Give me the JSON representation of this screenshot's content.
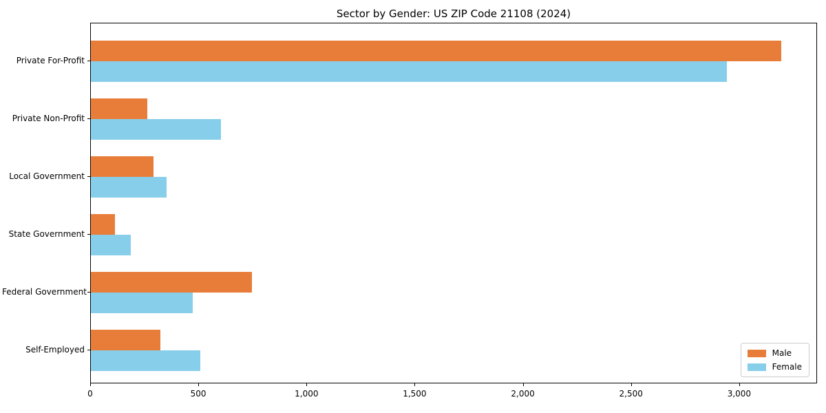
{
  "title": "Sector by Gender: US ZIP Code 21108 (2024)",
  "chart_data": {
    "type": "bar",
    "orientation": "horizontal",
    "title": "Sector by Gender: US ZIP Code 21108 (2024)",
    "xlabel": "",
    "ylabel": "",
    "categories": [
      "Private For-Profit",
      "Private Non-Profit",
      "Local Government",
      "State Government",
      "Federal Government",
      "Self-Employed"
    ],
    "series": [
      {
        "name": "Male",
        "color": "#E87D3A",
        "values": [
          3190,
          260,
          290,
          110,
          745,
          320
        ]
      },
      {
        "name": "Female",
        "color": "#87CEEB",
        "values": [
          2940,
          600,
          350,
          185,
          470,
          505
        ]
      }
    ],
    "xlim": [
      0,
      3360
    ],
    "xticks": [
      0,
      500,
      1000,
      1500,
      2000,
      2500,
      3000
    ],
    "xtick_labels": [
      "0",
      "500",
      "1,000",
      "1,500",
      "2,000",
      "2,500",
      "3,000"
    ],
    "grid": false,
    "legend_position": "lower right"
  },
  "legend": {
    "items": [
      {
        "label": "Male",
        "color": "#E87D3A"
      },
      {
        "label": "Female",
        "color": "#87CEEB"
      }
    ]
  }
}
